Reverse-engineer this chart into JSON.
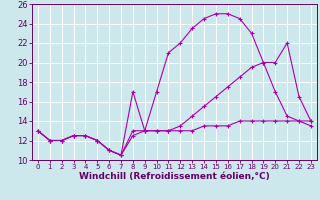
{
  "line1_x": [
    0,
    1,
    2,
    3,
    4,
    5,
    6,
    7,
    8,
    9,
    10,
    11,
    12,
    13,
    14,
    15,
    16,
    17,
    18,
    19,
    20,
    21,
    22,
    23
  ],
  "line1_y": [
    13,
    12,
    12,
    12.5,
    12.5,
    12,
    11,
    10.5,
    13,
    13,
    17,
    21,
    22,
    23.5,
    24.5,
    25,
    25,
    24.5,
    23,
    20,
    17,
    14.5,
    14,
    13.5
  ],
  "line2_x": [
    0,
    1,
    2,
    3,
    4,
    5,
    6,
    7,
    8,
    9,
    10,
    11,
    12,
    13,
    14,
    15,
    16,
    17,
    18,
    19,
    20,
    21,
    22,
    23
  ],
  "line2_y": [
    13,
    12,
    12,
    12.5,
    12.5,
    12,
    11,
    10.5,
    17,
    13,
    13,
    13,
    13.5,
    14.5,
    15.5,
    16.5,
    17.5,
    18.5,
    19.5,
    20,
    20,
    22,
    16.5,
    14
  ],
  "line3_x": [
    0,
    1,
    2,
    3,
    4,
    5,
    6,
    7,
    8,
    9,
    10,
    11,
    12,
    13,
    14,
    15,
    16,
    17,
    18,
    19,
    20,
    21,
    22,
    23
  ],
  "line3_y": [
    13,
    12,
    12,
    12.5,
    12.5,
    12,
    11,
    10.5,
    12.5,
    13,
    13,
    13,
    13,
    13,
    13.5,
    13.5,
    13.5,
    14,
    14,
    14,
    14,
    14,
    14,
    14
  ],
  "line_color": "#aa00aa",
  "bg_color": "#cce8ec",
  "grid_color": "#b8dde2",
  "xlabel": "Windchill (Refroidissement éolien,°C)",
  "xlim": [
    -0.5,
    23.5
  ],
  "ylim": [
    10,
    26
  ],
  "yticks": [
    10,
    12,
    14,
    16,
    18,
    20,
    22,
    24,
    26
  ],
  "xticks": [
    0,
    1,
    2,
    3,
    4,
    5,
    6,
    7,
    8,
    9,
    10,
    11,
    12,
    13,
    14,
    15,
    16,
    17,
    18,
    19,
    20,
    21,
    22,
    23
  ],
  "tick_color": "#660066",
  "label_fontsize": 5.5,
  "xlabel_fontsize": 6.5
}
